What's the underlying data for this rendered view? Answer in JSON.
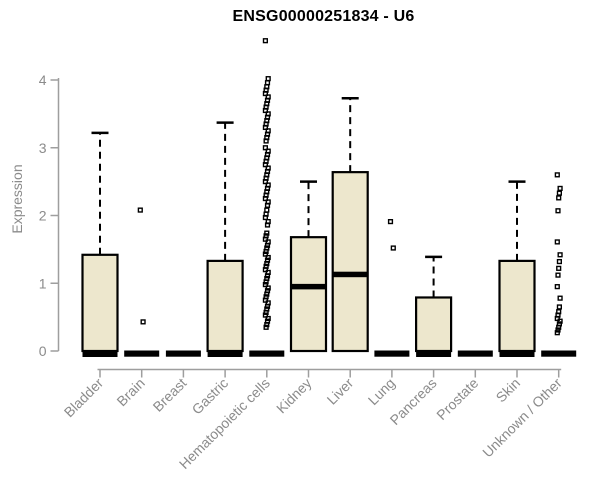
{
  "chart_data": {
    "type": "boxplot",
    "title": "ENSG00000251834 - U6",
    "ylabel": "Expression",
    "xlabel": "",
    "ylim": [
      0,
      4
    ],
    "yticks": [
      0,
      1,
      2,
      3,
      4
    ],
    "grid": false,
    "legend": null,
    "colors": {
      "box_fill": "#EDE7CD",
      "box_stroke": "#000000",
      "axis_line": "#9e9e9e",
      "axis_text": "#8b8b8b",
      "title_text": "#000000",
      "outlier": "#000000"
    },
    "groups": [
      {
        "label": "Bladder",
        "type": "box",
        "q1": 0,
        "median": 0,
        "q3": 1.42,
        "whisker_high": 3.22,
        "outliers": []
      },
      {
        "label": "Brain",
        "type": "collapsed",
        "median": 0,
        "outliers": [
          2.08,
          0.43
        ]
      },
      {
        "label": "Breast",
        "type": "collapsed",
        "median": 0,
        "outliers": []
      },
      {
        "label": "Gastric",
        "type": "box",
        "q1": 0,
        "median": 0,
        "q3": 1.33,
        "whisker_high": 3.37,
        "outliers": []
      },
      {
        "label": "Hematopoietic cells",
        "type": "collapsed",
        "median": 0,
        "outliers": [
          4.58,
          4.02,
          3.96,
          3.9,
          3.85,
          3.8,
          3.75,
          3.7,
          3.65,
          3.6,
          3.55,
          3.5,
          3.45,
          3.4,
          3.35,
          3.3,
          3.25,
          3.2,
          3.15,
          3.1,
          3.0,
          2.95,
          2.9,
          2.85,
          2.8,
          2.75,
          2.7,
          2.65,
          2.6,
          2.55,
          2.5,
          2.45,
          2.4,
          2.35,
          2.3,
          2.25,
          2.2,
          2.15,
          2.08,
          2.02,
          1.97,
          1.91,
          1.86,
          1.74,
          1.7,
          1.65,
          1.61,
          1.56,
          1.52,
          1.47,
          1.43,
          1.38,
          1.34,
          1.29,
          1.25,
          1.2,
          1.16,
          1.11,
          1.07,
          1.02,
          0.98,
          0.93,
          0.89,
          0.84,
          0.8,
          0.75,
          0.71,
          0.66,
          0.62,
          0.57,
          0.53,
          0.48,
          0.44,
          0.39,
          0.35
        ]
      },
      {
        "label": "Kidney",
        "type": "box",
        "q1": 0,
        "median": 0.95,
        "q3": 1.68,
        "whisker_high": 2.5,
        "outliers": []
      },
      {
        "label": "Liver",
        "type": "box",
        "q1": 0,
        "median": 1.13,
        "q3": 2.64,
        "whisker_high": 3.73,
        "outliers": []
      },
      {
        "label": "Lung",
        "type": "collapsed",
        "median": 0,
        "outliers": [
          1.91,
          1.52
        ]
      },
      {
        "label": "Pancreas",
        "type": "box",
        "q1": 0,
        "median": 0,
        "q3": 0.79,
        "whisker_high": 1.39,
        "outliers": []
      },
      {
        "label": "Prostate",
        "type": "collapsed",
        "median": 0,
        "outliers": []
      },
      {
        "label": "Skin",
        "type": "box",
        "q1": 0,
        "median": 0,
        "q3": 1.33,
        "whisker_high": 2.5,
        "outliers": []
      },
      {
        "label": "Unknown / Other",
        "type": "collapsed",
        "median": 0,
        "outliers": [
          2.6,
          2.4,
          2.33,
          2.26,
          2.07,
          1.61,
          1.42,
          1.32,
          1.22,
          1.12,
          0.95,
          0.78,
          0.65,
          0.58,
          0.53,
          0.48,
          0.44,
          0.4,
          0.35,
          0.31,
          0.27
        ]
      }
    ]
  }
}
